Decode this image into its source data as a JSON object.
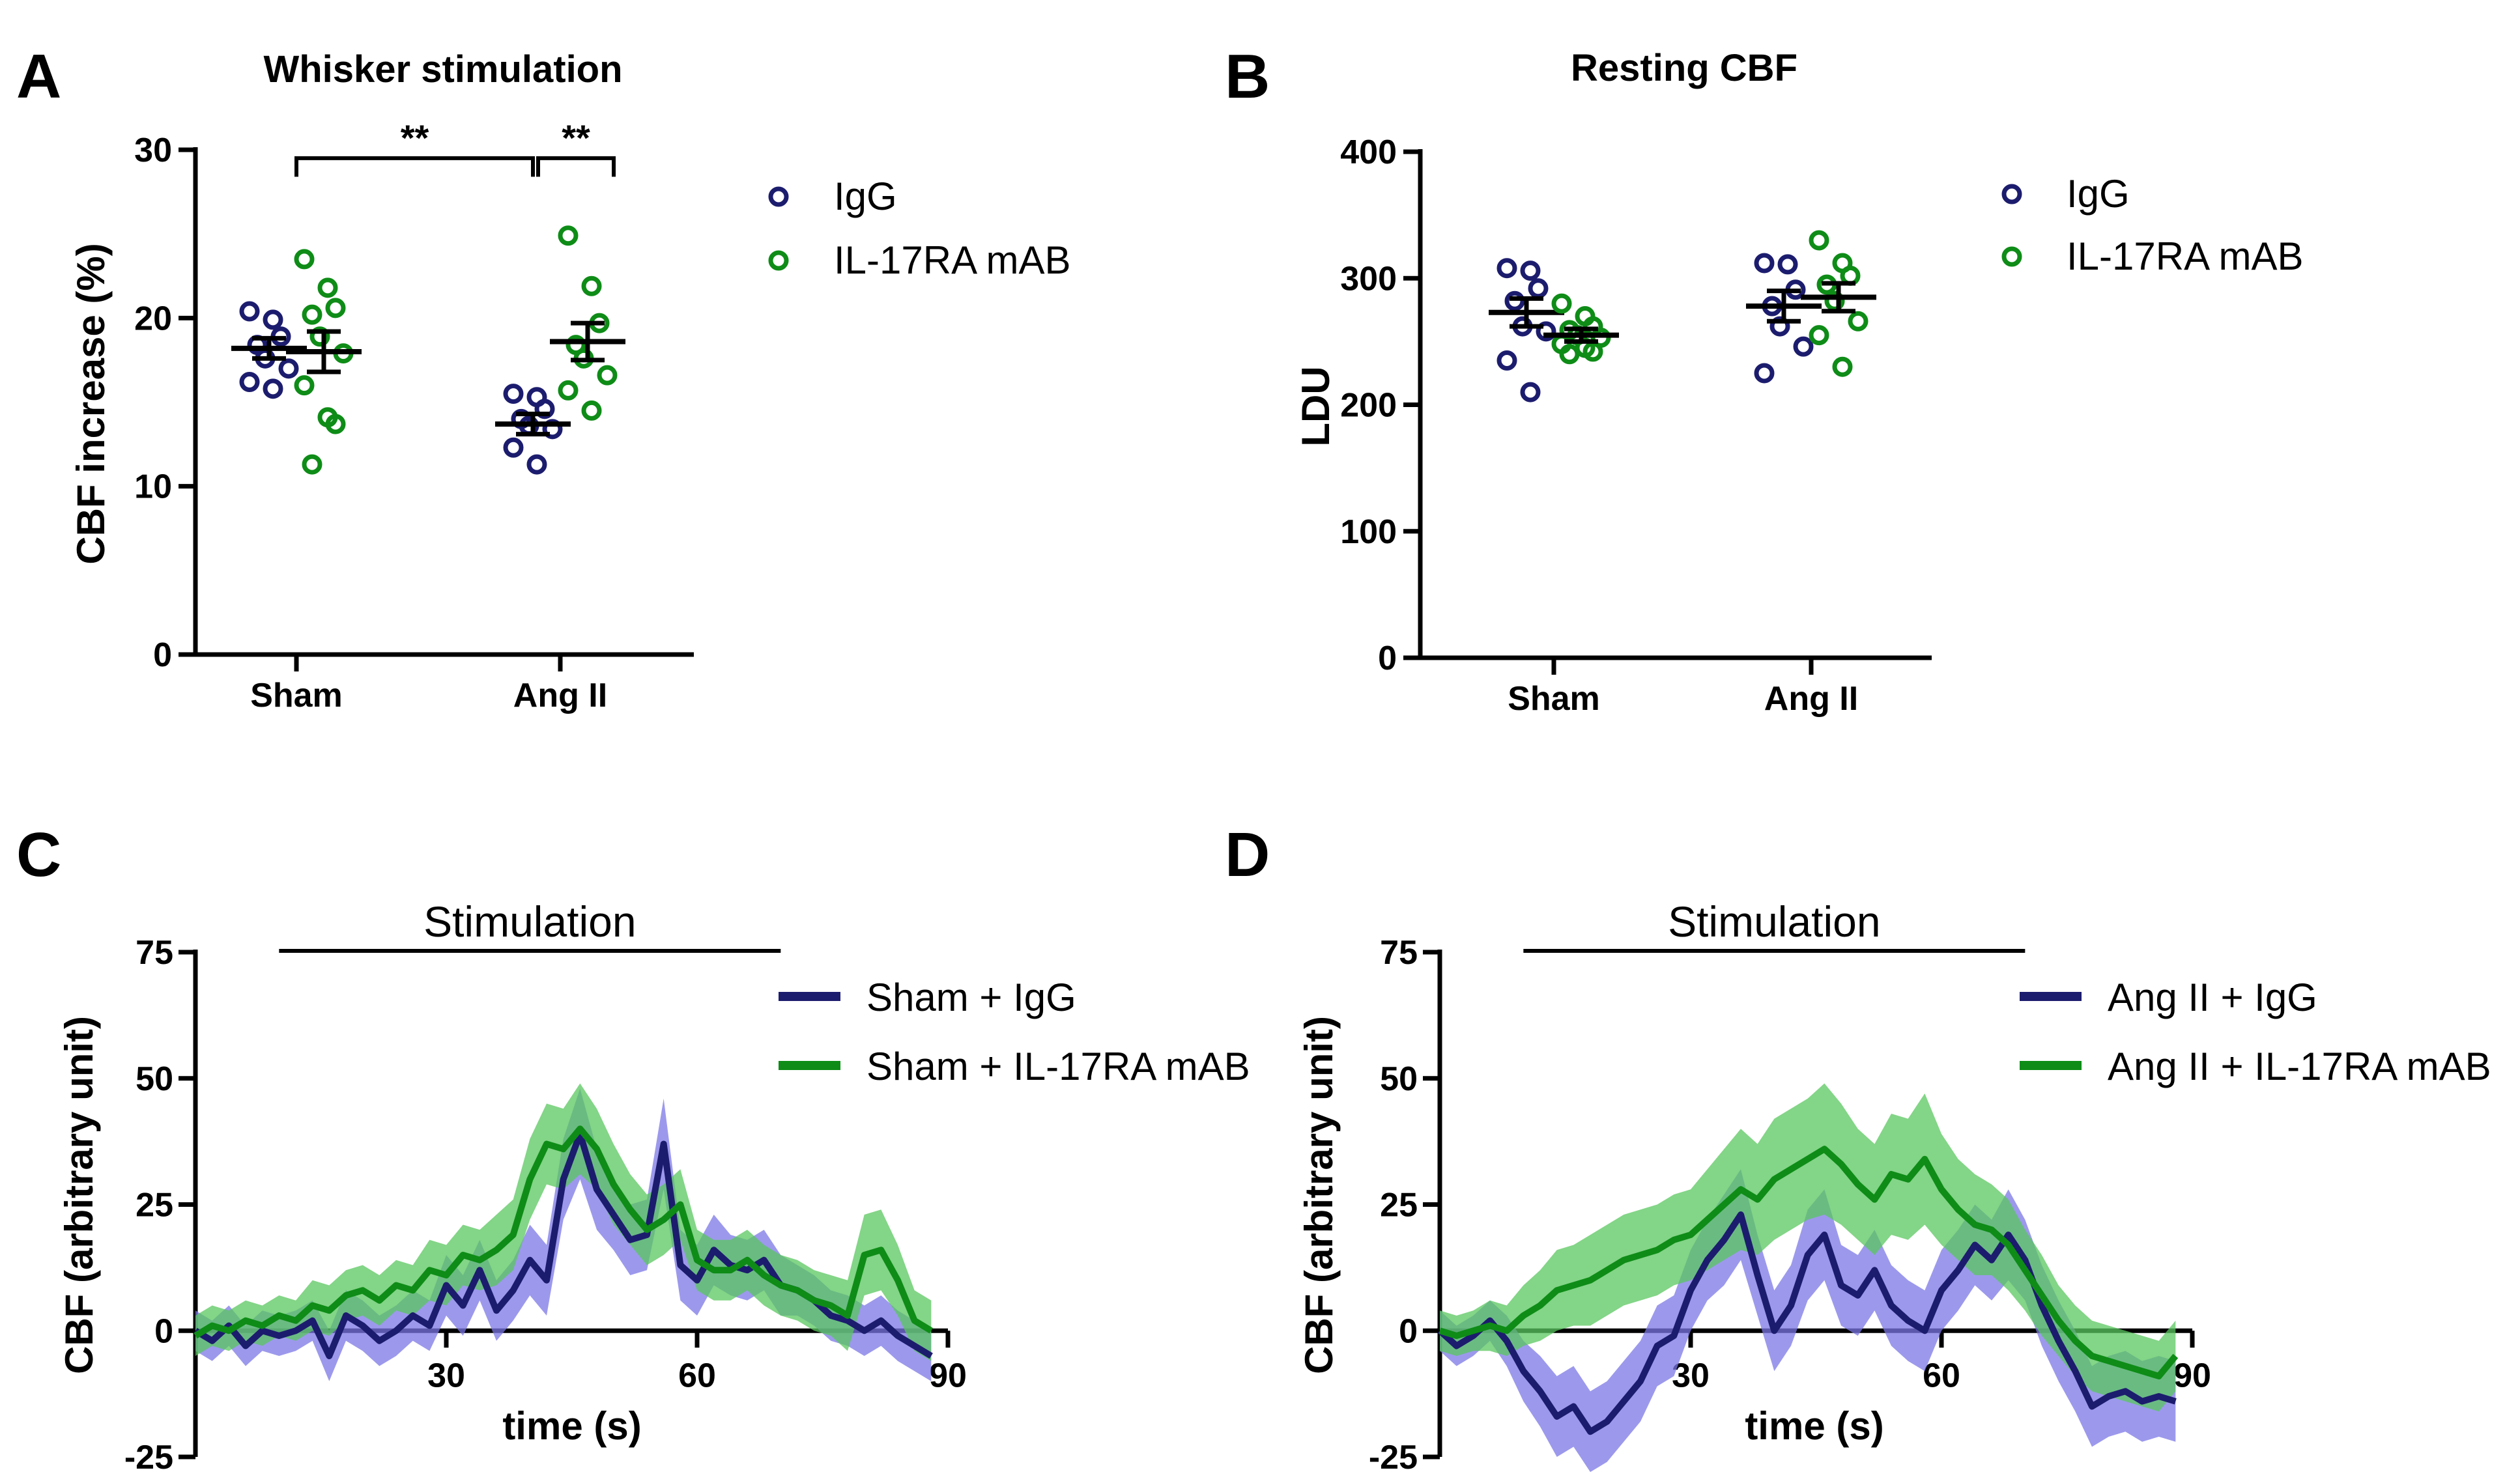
{
  "colors": {
    "igg": "#1c1c6e",
    "mab": "#0e8c17",
    "igg_band": "#7b77e6",
    "mab_band": "#5ac75f",
    "axis": "#000000"
  },
  "chart_data": [
    {
      "id": "A",
      "type": "scatter",
      "panel_label": "A",
      "title": "Whisker stimulation",
      "xlabel": "",
      "ylabel": "CBF increase  (%)",
      "ylim": [
        0,
        30
      ],
      "yticks": [
        "0",
        "10",
        "20",
        "30"
      ],
      "categories": [
        "Sham",
        "Ang II"
      ],
      "legend": [
        "IgG",
        "IL-17RA mAB"
      ],
      "significance": [
        {
          "label": "**",
          "from": "Sham",
          "to": "Ang II IgG"
        },
        {
          "label": "**",
          "from": "Ang II IgG",
          "to": "Ang II IL-17RA mAB"
        }
      ],
      "series": [
        {
          "name": "IgG",
          "color": "igg",
          "groups": [
            {
              "category": "Sham",
              "mean": 18.2,
              "sem": 0.6,
              "points": [
                20.4,
                19.9,
                18.9,
                18.4,
                17.6,
                17.0,
                16.2,
                15.8
              ]
            },
            {
              "category": "Ang II",
              "mean": 13.7,
              "sem": 0.6,
              "points": [
                15.5,
                15.3,
                14.6,
                14.0,
                13.6,
                13.4,
                12.3,
                11.3
              ]
            }
          ]
        },
        {
          "name": "IL-17RA mAB",
          "color": "mab",
          "groups": [
            {
              "category": "Sham",
              "mean": 18.0,
              "sem": 1.2,
              "points": [
                23.5,
                21.8,
                20.6,
                20.2,
                18.9,
                17.9,
                16.0,
                14.1,
                13.7,
                11.3
              ]
            },
            {
              "category": "Ang II",
              "mean": 18.6,
              "sem": 1.1,
              "points": [
                24.9,
                21.9,
                19.7,
                18.4,
                17.6,
                16.6,
                15.7,
                14.5
              ]
            }
          ]
        }
      ]
    },
    {
      "id": "B",
      "type": "scatter",
      "panel_label": "B",
      "title": "Resting CBF",
      "xlabel": "",
      "ylabel": "LDU",
      "ylim": [
        0,
        400
      ],
      "yticks": [
        "0",
        "100",
        "200",
        "300",
        "400"
      ],
      "categories": [
        "Sham",
        "Ang II"
      ],
      "legend": [
        "IgG",
        "IL-17RA mAB"
      ],
      "series": [
        {
          "name": "IgG",
          "color": "igg",
          "groups": [
            {
              "category": "Sham",
              "mean": 273,
              "sem": 11,
              "points": [
                308,
                306,
                292,
                282,
                262,
                258,
                235,
                210
              ]
            },
            {
              "category": "Ang II",
              "mean": 278,
              "sem": 12,
              "points": [
                312,
                311,
                291,
                278,
                262,
                246,
                225
              ]
            }
          ]
        },
        {
          "name": "IL-17RA mAB",
          "color": "mab",
          "groups": [
            {
              "category": "Sham",
              "mean": 255,
              "sem": 5,
              "points": [
                280,
                270,
                262,
                259,
                255,
                253,
                248,
                245,
                242,
                240
              ]
            },
            {
              "category": "Ang II",
              "mean": 285,
              "sem": 11,
              "points": [
                330,
                312,
                302,
                295,
                282,
                266,
                255,
                230
              ]
            }
          ]
        }
      ]
    },
    {
      "id": "C",
      "type": "line",
      "panel_label": "C",
      "title": "",
      "annotation": "Stimulation",
      "stim_range": [
        10,
        70
      ],
      "xlabel": "time (s)",
      "ylabel": "CBF (arbitrary unit)",
      "xlim": [
        0,
        90
      ],
      "ylim": [
        -25,
        75
      ],
      "xticks": [
        "30",
        "60",
        "90"
      ],
      "yticks": [
        "-25",
        "0",
        "25",
        "50",
        "75"
      ],
      "series": [
        {
          "name": "Sham + IgG",
          "color": "igg",
          "band": "igg_band",
          "x": [
            0,
            2,
            4,
            6,
            8,
            10,
            12,
            14,
            16,
            18,
            20,
            22,
            24,
            26,
            28,
            30,
            32,
            34,
            36,
            38,
            40,
            42,
            44,
            46,
            48,
            50,
            52,
            54,
            56,
            58,
            60,
            62,
            64,
            66,
            68,
            70,
            72,
            74,
            76,
            78,
            80,
            82,
            84,
            86,
            88
          ],
          "y": [
            0,
            -2,
            1,
            -3,
            0,
            -1,
            0,
            2,
            -5,
            3,
            1,
            -2,
            0,
            3,
            1,
            9,
            5,
            12,
            4,
            8,
            14,
            10,
            30,
            39,
            28,
            23,
            18,
            19,
            37,
            13,
            10,
            16,
            13,
            12,
            14,
            9,
            8,
            6,
            3,
            2,
            0,
            2,
            -1,
            -3,
            -5
          ],
          "err": [
            4,
            4,
            4,
            4,
            4,
            4,
            4,
            4,
            5,
            5,
            5,
            5,
            5,
            5,
            5,
            6,
            6,
            6,
            6,
            6,
            7,
            7,
            8,
            9,
            8,
            7,
            7,
            7,
            9,
            7,
            7,
            7,
            6,
            6,
            6,
            6,
            5,
            5,
            5,
            5,
            5,
            5,
            5,
            5,
            5
          ]
        },
        {
          "name": "Sham + IL-17RA mAB",
          "color": "mab",
          "band": "mab_band",
          "x": [
            0,
            2,
            4,
            6,
            8,
            10,
            12,
            14,
            16,
            18,
            20,
            22,
            24,
            26,
            28,
            30,
            32,
            34,
            36,
            38,
            40,
            42,
            44,
            46,
            48,
            50,
            52,
            54,
            56,
            58,
            60,
            62,
            64,
            66,
            68,
            70,
            72,
            74,
            76,
            78,
            80,
            82,
            84,
            86,
            88
          ],
          "y": [
            -1,
            1,
            0,
            2,
            1,
            3,
            2,
            5,
            4,
            7,
            8,
            6,
            9,
            8,
            12,
            11,
            15,
            14,
            16,
            19,
            30,
            37,
            36,
            40,
            36,
            29,
            24,
            20,
            22,
            25,
            14,
            12,
            12,
            14,
            11,
            9,
            8,
            6,
            5,
            3,
            15,
            16,
            10,
            2,
            0
          ],
          "err": [
            4,
            4,
            4,
            4,
            4,
            4,
            4,
            5,
            5,
            5,
            5,
            5,
            5,
            5,
            6,
            6,
            6,
            6,
            7,
            7,
            8,
            8,
            8,
            9,
            8,
            8,
            7,
            7,
            7,
            7,
            6,
            6,
            6,
            6,
            6,
            6,
            6,
            6,
            6,
            7,
            8,
            8,
            7,
            6,
            6
          ]
        }
      ]
    },
    {
      "id": "D",
      "type": "line",
      "panel_label": "D",
      "title": "",
      "annotation": "Stimulation",
      "stim_range": [
        10,
        70
      ],
      "xlabel": "time (s)",
      "ylabel": "CBF (arbitrary unit)",
      "xlim": [
        0,
        90
      ],
      "ylim": [
        -25,
        75
      ],
      "xticks": [
        "30",
        "60",
        "90"
      ],
      "yticks": [
        "-25",
        "0",
        "25",
        "50",
        "75"
      ],
      "series": [
        {
          "name": "Ang II + IgG",
          "color": "igg",
          "band": "igg_band",
          "x": [
            0,
            2,
            4,
            6,
            8,
            10,
            12,
            14,
            16,
            18,
            20,
            22,
            24,
            26,
            28,
            30,
            32,
            34,
            36,
            38,
            40,
            42,
            44,
            46,
            48,
            50,
            52,
            54,
            56,
            58,
            60,
            62,
            64,
            66,
            68,
            70,
            72,
            74,
            76,
            78,
            80,
            82,
            84,
            86,
            88
          ],
          "y": [
            0,
            -3,
            -1,
            2,
            -2,
            -8,
            -12,
            -17,
            -15,
            -20,
            -18,
            -14,
            -10,
            -3,
            -1,
            8,
            14,
            18,
            23,
            11,
            0,
            5,
            15,
            19,
            9,
            7,
            12,
            5,
            2,
            0,
            8,
            12,
            17,
            14,
            19,
            14,
            5,
            -2,
            -8,
            -15,
            -13,
            -12,
            -14,
            -13,
            -14
          ],
          "err": [
            4,
            4,
            4,
            4,
            5,
            6,
            7,
            8,
            8,
            8,
            8,
            8,
            8,
            8,
            8,
            8,
            8,
            9,
            9,
            8,
            8,
            8,
            9,
            9,
            8,
            8,
            8,
            8,
            8,
            8,
            8,
            8,
            8,
            8,
            9,
            8,
            8,
            8,
            8,
            8,
            8,
            8,
            8,
            8,
            8
          ]
        },
        {
          "name": "Ang II + IL-17RA mAB",
          "color": "mab",
          "band": "mab_band",
          "x": [
            0,
            2,
            4,
            6,
            8,
            10,
            12,
            14,
            16,
            18,
            20,
            22,
            24,
            26,
            28,
            30,
            32,
            34,
            36,
            38,
            40,
            42,
            44,
            46,
            48,
            50,
            52,
            54,
            56,
            58,
            60,
            62,
            64,
            66,
            68,
            70,
            72,
            74,
            76,
            78,
            80,
            82,
            84,
            86,
            88
          ],
          "y": [
            0,
            -1,
            0,
            1,
            0,
            3,
            5,
            8,
            9,
            10,
            12,
            14,
            15,
            16,
            18,
            19,
            22,
            25,
            28,
            26,
            30,
            32,
            34,
            36,
            33,
            29,
            26,
            31,
            30,
            34,
            28,
            24,
            21,
            20,
            17,
            12,
            7,
            2,
            -2,
            -5,
            -6,
            -7,
            -8,
            -9,
            -5
          ],
          "err": [
            4,
            4,
            4,
            5,
            5,
            6,
            7,
            8,
            8,
            9,
            9,
            9,
            9,
            9,
            9,
            9,
            10,
            11,
            12,
            11,
            12,
            12,
            12,
            13,
            12,
            11,
            11,
            12,
            12,
            13,
            11,
            10,
            10,
            9,
            9,
            8,
            8,
            7,
            7,
            7,
            7,
            7,
            7,
            7,
            7
          ]
        }
      ]
    }
  ]
}
